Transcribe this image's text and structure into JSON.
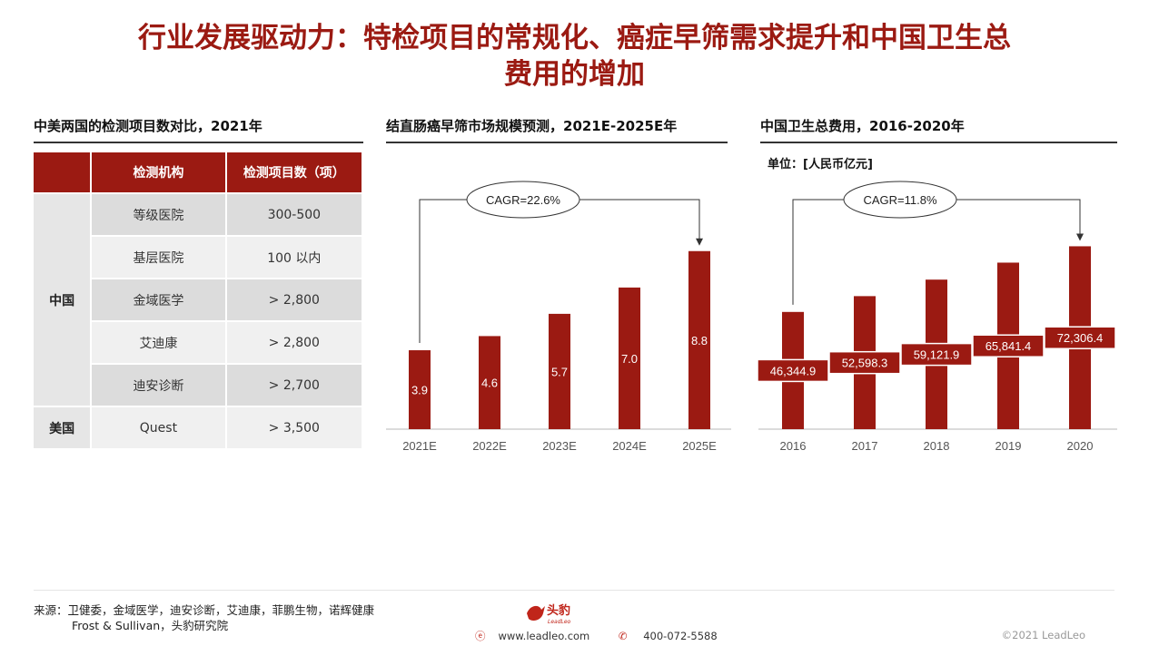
{
  "title": {
    "line1": "行业发展驱动力：特检项目的常规化、癌症早筛需求提升和中国卫生总",
    "line2": "费用的增加"
  },
  "table_panel": {
    "title": "中美两国的检测项目数对比，2021年",
    "headers": [
      "",
      "检测机构",
      "检测项目数（项）"
    ],
    "groups": [
      {
        "country": "中国",
        "rows": [
          {
            "org": "等级医院",
            "count": "300-500"
          },
          {
            "org": "基层医院",
            "count": "100 以内"
          },
          {
            "org": "金域医学",
            "count": "> 2,800"
          },
          {
            "org": "艾迪康",
            "count": "> 2,800"
          },
          {
            "org": "迪安诊断",
            "count": "> 2,700"
          }
        ]
      },
      {
        "country": "美国",
        "rows": [
          {
            "org": "Quest",
            "count": "> 3,500"
          }
        ]
      }
    ]
  },
  "colors": {
    "bar": "#9b1a12",
    "accent": "#9b1a12"
  },
  "chart_data": [
    {
      "type": "bar",
      "title": "结直肠癌早筛市场规模预测，2021E-2025E年",
      "categories": [
        "2021E",
        "2022E",
        "2023E",
        "2024E",
        "2025E"
      ],
      "values": [
        3.9,
        4.6,
        5.7,
        7.0,
        8.8
      ],
      "labels": [
        "3.9",
        "4.6",
        "5.7",
        "7.0",
        "8.8"
      ],
      "annotation": "CAGR=22.6%",
      "ylim": [
        0,
        10
      ]
    },
    {
      "type": "bar",
      "title": "中国卫生总费用，2016-2020年",
      "unit": "单位：[人民币亿元]",
      "categories": [
        "2016",
        "2017",
        "2018",
        "2019",
        "2020"
      ],
      "values": [
        46344.9,
        52598.3,
        59121.9,
        65841.4,
        72306.4
      ],
      "labels": [
        "46,344.9",
        "52,598.3",
        "59,121.9",
        "65,841.4",
        "72,306.4"
      ],
      "annotation": "CAGR=11.8%",
      "ylim": [
        0,
        80000
      ]
    }
  ],
  "footer": {
    "source_line1": "来源：卫健委，金域医学，迪安诊断，艾迪康，菲鹏生物，诺辉健康",
    "source_line2": "Frost & Sullivan，头豹研究院",
    "logo_text": "头豹",
    "logo_sub": "LeadLeo",
    "website": "www.leadleo.com",
    "phone": "400-072-5588",
    "copyright": "©2021 LeadLeo"
  }
}
